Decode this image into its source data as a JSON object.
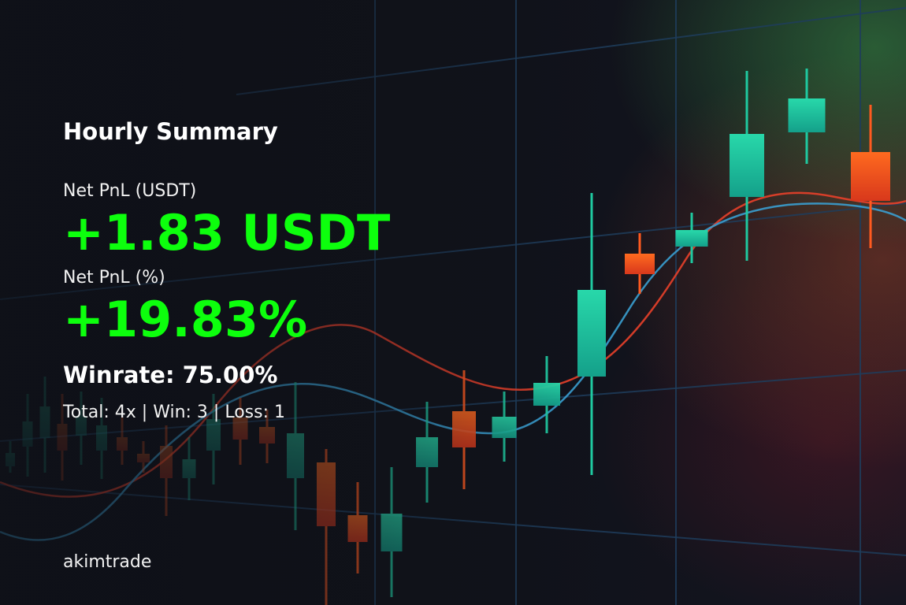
{
  "summary": {
    "title": "Hourly Summary",
    "pnl_usdt_label": "Net PnL (USDT)",
    "pnl_usdt_value": "+1.83 USDT",
    "pnl_pct_label": "Net PnL (%)",
    "pnl_pct_value": "+19.83%",
    "winrate_text": "Winrate: 75.00%",
    "stats_text": "Total: 4x | Win: 3 | Loss: 1"
  },
  "brand": {
    "name": "akimtrade"
  },
  "colors": {
    "positive": "#0dff0d",
    "bullish_candle": "#1fc9a0",
    "bearish_candle": "#ff5a1f",
    "grid_line": "#1e3d5c",
    "ma_red": "#e8402a",
    "ma_blue": "#3a9fd0",
    "background": "#0f1118"
  },
  "background_chart": {
    "kind": "decorative-candlestick",
    "trend": "rising"
  }
}
